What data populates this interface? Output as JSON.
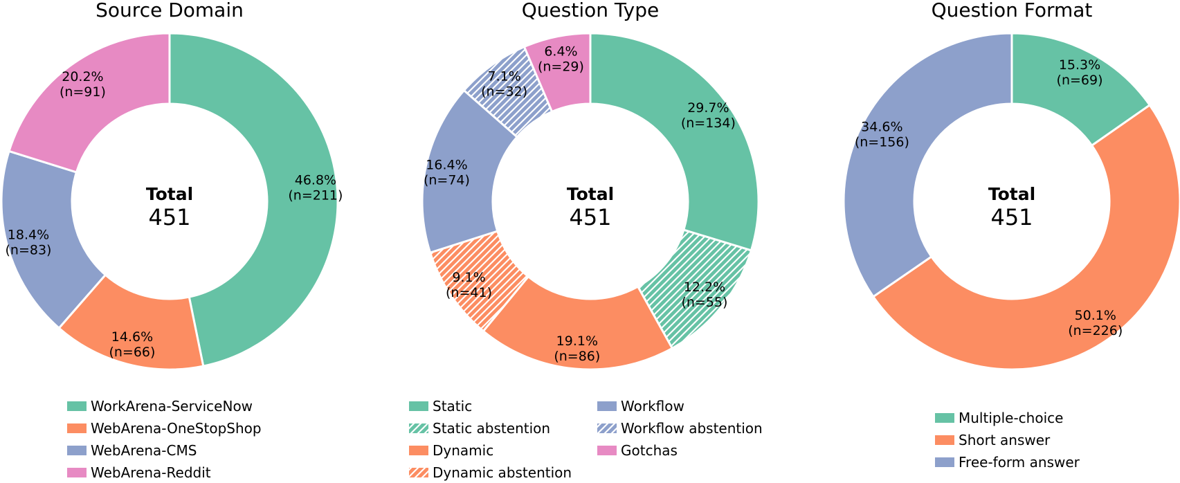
{
  "chart_data": [
    {
      "type": "pie",
      "title": "Source Domain",
      "center_label": "Total",
      "center_value": "451",
      "slices": [
        {
          "name": "WorkArena-ServiceNow",
          "value": 211,
          "pct": "46.8%",
          "count": "(n=211)",
          "color": "#66c2a5",
          "hatched": false
        },
        {
          "name": "WebArena-OneStopShop",
          "value": 66,
          "pct": "14.6%",
          "count": "(n=66)",
          "color": "#fc8d62",
          "hatched": false
        },
        {
          "name": "WebArena-CMS",
          "value": 83,
          "pct": "18.4%",
          "count": "(n=83)",
          "color": "#8da0cb",
          "hatched": false
        },
        {
          "name": "WebArena-Reddit",
          "value": 91,
          "pct": "20.2%",
          "count": "(n=91)",
          "color": "#e78ac3",
          "hatched": false
        }
      ],
      "legend": [
        {
          "label": "WorkArena-ServiceNow",
          "color": "#66c2a5",
          "hatched": false
        },
        {
          "label": "WebArena-OneStopShop",
          "color": "#fc8d62",
          "hatched": false
        },
        {
          "label": "WebArena-CMS",
          "color": "#8da0cb",
          "hatched": false
        },
        {
          "label": "WebArena-Reddit",
          "color": "#e78ac3",
          "hatched": false
        }
      ]
    },
    {
      "type": "pie",
      "title": "Question Type",
      "center_label": "Total",
      "center_value": "451",
      "slices": [
        {
          "name": "Static",
          "value": 134,
          "pct": "29.7%",
          "count": "(n=134)",
          "color": "#66c2a5",
          "hatched": false
        },
        {
          "name": "Static abstention",
          "value": 55,
          "pct": "12.2%",
          "count": "(n=55)",
          "color": "#66c2a5",
          "hatched": true
        },
        {
          "name": "Dynamic",
          "value": 86,
          "pct": "19.1%",
          "count": "(n=86)",
          "color": "#fc8d62",
          "hatched": false
        },
        {
          "name": "Dynamic abstention",
          "value": 41,
          "pct": "9.1%",
          "count": "(n=41)",
          "color": "#fc8d62",
          "hatched": true
        },
        {
          "name": "Workflow",
          "value": 74,
          "pct": "16.4%",
          "count": "(n=74)",
          "color": "#8da0cb",
          "hatched": false
        },
        {
          "name": "Workflow abstention",
          "value": 32,
          "pct": "7.1%",
          "count": "(n=32)",
          "color": "#8da0cb",
          "hatched": true
        },
        {
          "name": "Gotchas",
          "value": 29,
          "pct": "6.4%",
          "count": "(n=29)",
          "color": "#e78ac3",
          "hatched": false
        }
      ],
      "legend": [
        {
          "label": "Static",
          "color": "#66c2a5",
          "hatched": false
        },
        {
          "label": "Static abstention",
          "color": "#66c2a5",
          "hatched": true
        },
        {
          "label": "Dynamic",
          "color": "#fc8d62",
          "hatched": false
        },
        {
          "label": "Dynamic abstention",
          "color": "#fc8d62",
          "hatched": true
        },
        {
          "label": "Workflow",
          "color": "#8da0cb",
          "hatched": false
        },
        {
          "label": "Workflow abstention",
          "color": "#8da0cb",
          "hatched": true
        },
        {
          "label": "Gotchas",
          "color": "#e78ac3",
          "hatched": false
        }
      ]
    },
    {
      "type": "pie",
      "title": "Question Format",
      "center_label": "Total",
      "center_value": "451",
      "slices": [
        {
          "name": "Multiple-choice",
          "value": 69,
          "pct": "15.3%",
          "count": "(n=69)",
          "color": "#66c2a5",
          "hatched": false
        },
        {
          "name": "Short answer",
          "value": 226,
          "pct": "50.1%",
          "count": "(n=226)",
          "color": "#fc8d62",
          "hatched": false
        },
        {
          "name": "Free-form answer",
          "value": 156,
          "pct": "34.6%",
          "count": "(n=156)",
          "color": "#8da0cb",
          "hatched": false
        }
      ],
      "legend": [
        {
          "label": "Multiple-choice",
          "color": "#66c2a5",
          "hatched": false
        },
        {
          "label": "Short answer",
          "color": "#fc8d62",
          "hatched": false
        },
        {
          "label": "Free-form answer",
          "color": "#8da0cb",
          "hatched": false
        }
      ]
    }
  ]
}
